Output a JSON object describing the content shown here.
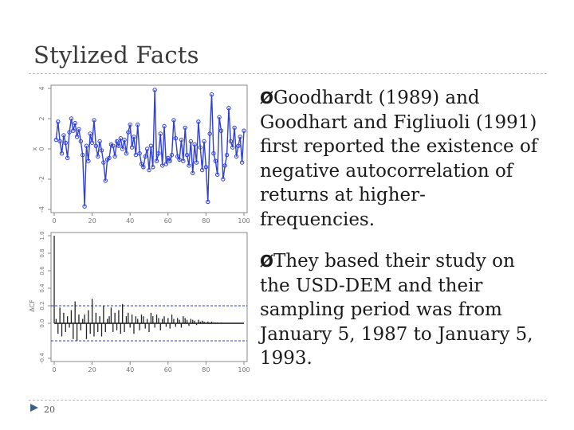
{
  "slide": {
    "title": "Stylized Facts",
    "page_number": "20",
    "bullets": [
      {
        "marker": "Ø",
        "text": "Goodhardt (1989) and Goodhart and Figliuoli (1991) first reported the existence of negative autocorrelation of returns at higher-frequencies."
      },
      {
        "marker": "Ø",
        "text": "They based their study on the USD-DEM and their sampling period was from January 5, 1987 to January 5, 1993."
      }
    ]
  },
  "chart_data": [
    {
      "type": "line",
      "title": "",
      "xlabel": "",
      "ylabel": "x",
      "xlim": [
        0,
        100
      ],
      "ylim": [
        -4,
        4
      ],
      "xticks": [
        0,
        20,
        40,
        60,
        80,
        100
      ],
      "yticks": [
        -4,
        -2,
        0,
        2,
        4
      ],
      "color": "#2f3fd8",
      "x": [
        1,
        2,
        3,
        4,
        5,
        6,
        7,
        8,
        9,
        10,
        11,
        12,
        13,
        14,
        15,
        16,
        17,
        18,
        19,
        20,
        21,
        22,
        23,
        24,
        25,
        26,
        27,
        28,
        29,
        30,
        31,
        32,
        33,
        34,
        35,
        36,
        37,
        38,
        39,
        40,
        41,
        42,
        43,
        44,
        45,
        46,
        47,
        48,
        49,
        50,
        51,
        52,
        53,
        54,
        55,
        56,
        57,
        58,
        59,
        60,
        61,
        62,
        63,
        64,
        65,
        66,
        67,
        68,
        69,
        70,
        71,
        72,
        73,
        74,
        75,
        76,
        77,
        78,
        79,
        80,
        81,
        82,
        83,
        84,
        85,
        86,
        87,
        88,
        89,
        90,
        91,
        92,
        93,
        94,
        95,
        96,
        97,
        98,
        99,
        100
      ],
      "y": [
        0.6,
        1.8,
        0.5,
        -0.3,
        0.9,
        0.4,
        -0.6,
        1.1,
        2.0,
        1.2,
        1.7,
        0.8,
        1.3,
        0.5,
        -0.4,
        -3.8,
        0.2,
        -0.8,
        1.0,
        0.4,
        1.9,
        0.2,
        -0.5,
        0.5,
        -0.1,
        -0.9,
        -2.1,
        -0.7,
        -0.6,
        0.3,
        0.2,
        -0.5,
        0.5,
        0.2,
        0.7,
        0.0,
        0.6,
        -0.3,
        1.1,
        1.6,
        0.1,
        0.8,
        -0.4,
        1.6,
        -0.3,
        -1.0,
        -1.2,
        -0.5,
        0.0,
        -1.4,
        0.2,
        -1.2,
        3.9,
        -0.8,
        -0.3,
        1.0,
        -1.1,
        1.5,
        -1.0,
        -0.6,
        -0.8,
        -0.4,
        1.9,
        0.7,
        -0.5,
        -0.7,
        0.6,
        -0.8,
        1.4,
        -0.4,
        -1.1,
        0.5,
        -1.6,
        0.3,
        -0.9,
        1.8,
        0.1,
        -1.4,
        0.5,
        -1.2,
        -3.5,
        1.0,
        3.6,
        -0.3,
        -0.8,
        -1.7,
        2.1,
        1.2,
        -2.0,
        -1.1,
        -0.4,
        2.7,
        0.5,
        0.1,
        1.4,
        -0.5,
        0.2,
        0.8,
        -0.9,
        1.2
      ]
    },
    {
      "type": "bar",
      "title": "",
      "xlabel": "",
      "ylabel": "ACF",
      "xlim": [
        0,
        100
      ],
      "ylim": [
        -0.4,
        1.0
      ],
      "xticks": [
        0,
        20,
        40,
        60,
        80,
        100
      ],
      "yticks": [
        -0.4,
        0.0,
        0.2,
        0.4,
        0.6,
        0.8,
        1.0
      ],
      "confidence_band": [
        -0.2,
        0.2
      ],
      "band_color": "#2f3fd8",
      "lags": [
        0,
        1,
        2,
        3,
        4,
        5,
        6,
        7,
        8,
        9,
        10,
        11,
        12,
        13,
        14,
        15,
        16,
        17,
        18,
        19,
        20,
        21,
        22,
        23,
        24,
        25,
        26,
        27,
        28,
        29,
        30,
        31,
        32,
        33,
        34,
        35,
        36,
        37,
        38,
        39,
        40,
        41,
        42,
        43,
        44,
        45,
        46,
        47,
        48,
        49,
        50,
        51,
        52,
        53,
        54,
        55,
        56,
        57,
        58,
        59,
        60,
        61,
        62,
        63,
        64,
        65,
        66,
        67,
        68,
        69,
        70,
        71,
        72,
        73,
        74,
        75,
        76,
        77,
        78,
        79,
        80,
        81,
        82,
        83,
        84,
        85,
        86,
        87,
        88,
        89,
        90
      ],
      "values": [
        1.0,
        0.05,
        -0.12,
        0.18,
        -0.15,
        0.12,
        -0.1,
        0.08,
        -0.05,
        0.15,
        -0.18,
        0.25,
        -0.2,
        0.1,
        -0.08,
        0.05,
        0.1,
        -0.18,
        0.15,
        -0.12,
        0.28,
        -0.15,
        0.12,
        -0.1,
        0.08,
        -0.15,
        0.2,
        -0.1,
        0.05,
        0.08,
        0.18,
        -0.1,
        0.12,
        -0.08,
        0.15,
        -0.12,
        0.22,
        -0.1,
        0.08,
        0.12,
        -0.05,
        0.1,
        -0.12,
        0.08,
        0.05,
        -0.08,
        0.1,
        0.08,
        -0.06,
        0.05,
        -0.1,
        0.12,
        0.08,
        -0.05,
        0.1,
        0.06,
        -0.08,
        0.05,
        0.08,
        -0.04,
        0.06,
        -0.06,
        0.1,
        0.05,
        -0.04,
        0.06,
        0.04,
        -0.05,
        0.08,
        0.06,
        0.04,
        -0.03,
        0.05,
        0.04,
        0.03,
        -0.02,
        0.04,
        0.02,
        0.03,
        0.02,
        0.01,
        0.02,
        0.01,
        0.02,
        0.01,
        0.01,
        0.01,
        0.0,
        0.01,
        0.0,
        0.0
      ]
    }
  ]
}
